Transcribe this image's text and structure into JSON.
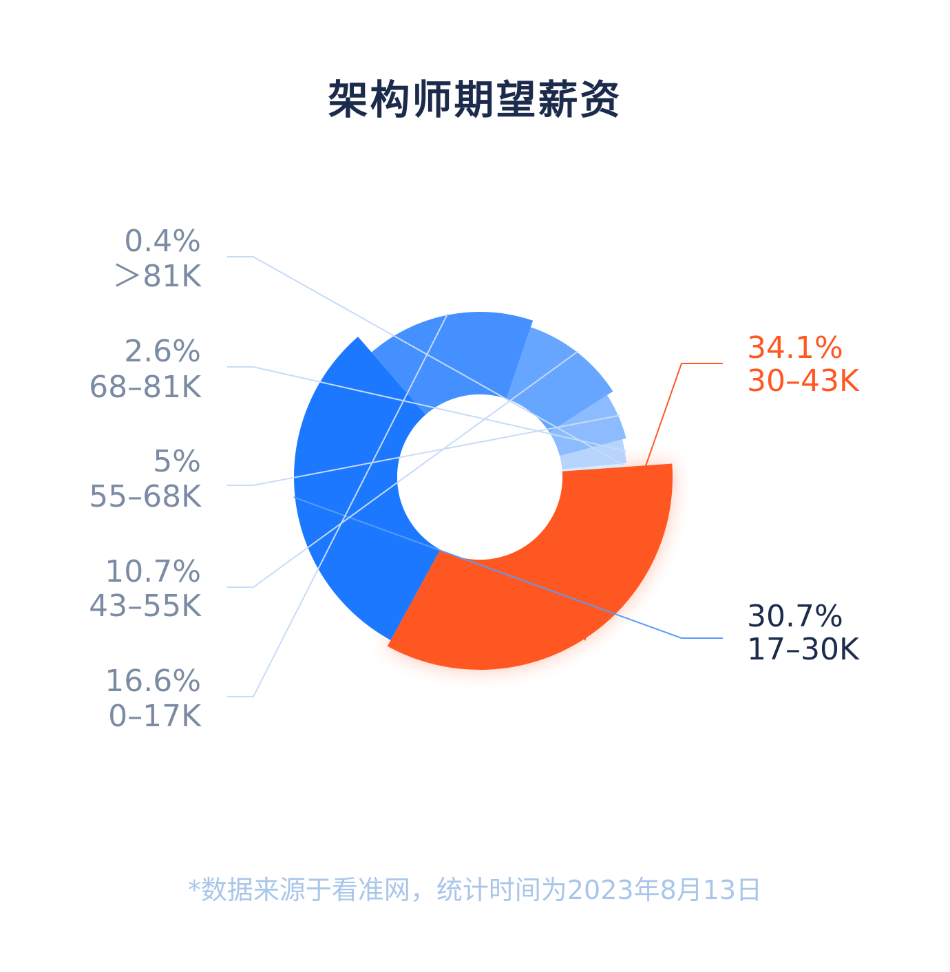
{
  "title": "架构师期望薪资",
  "footnote": "*数据来源于看准网，统计时间为2023年8月13日",
  "colors": {
    "highlight": "#ff5722",
    "blue_dark": "#1c2b4b",
    "label_gray": "#7b8ba3"
  },
  "chart_data": {
    "type": "pie",
    "variant": "rose-donut",
    "title": "架构师期望薪资",
    "slices": [
      {
        "category": "30-43K",
        "label_range": "30–43K",
        "value": 34.1,
        "label_value": "34.1%",
        "color": "#ff5722",
        "emphasis": true
      },
      {
        "category": "17-30K",
        "label_range": "17–30K",
        "value": 30.7,
        "label_value": "30.7%",
        "color": "#1c78ff"
      },
      {
        "category": "0-17K",
        "label_range": "0–17K",
        "value": 16.6,
        "label_value": "16.6%",
        "color": "#4590ff"
      },
      {
        "category": "43-55K",
        "label_range": "43–55K",
        "value": 10.7,
        "label_value": "10.7%",
        "color": "#66a6ff"
      },
      {
        "category": "55-68K",
        "label_range": "55–68K",
        "value": 5,
        "label_value": "5%",
        "color": "#8cbcff"
      },
      {
        "category": "68-81K",
        "label_range": "68–81K",
        "value": 2.6,
        "label_value": "2.6%",
        "color": "#b6d4fc"
      },
      {
        "category": ">81K",
        "label_range": "＞81K",
        "value": 0.4,
        "label_value": "0.4%",
        "color": "#d8e8fd"
      }
    ]
  }
}
